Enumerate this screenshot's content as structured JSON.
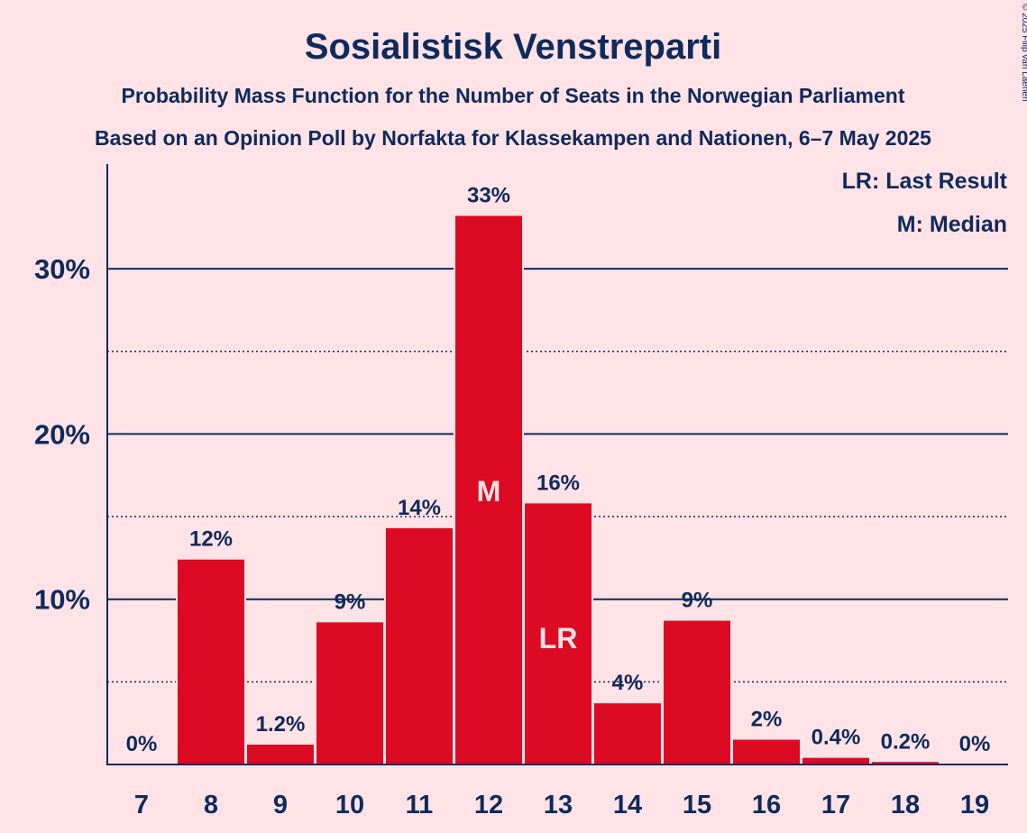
{
  "header": {
    "title": "Sosialistisk Venstreparti",
    "subtitle1": "Probability Mass Function for the Number of Seats in the Norwegian Parliament",
    "subtitle2": "Based on an Opinion Poll by Norfakta for Klassekampen and Nationen, 6–7 May 2025"
  },
  "legend": {
    "last_result": "LR: Last Result",
    "median": "M: Median"
  },
  "copyright": "© 2025 Filip van Laenen",
  "colors": {
    "background": "#FFE3E6",
    "bar": "#DC0A23",
    "text": "#0F2A5C"
  },
  "chart_data": {
    "type": "bar",
    "categories": [
      "7",
      "8",
      "9",
      "10",
      "11",
      "12",
      "13",
      "14",
      "15",
      "16",
      "17",
      "18",
      "19"
    ],
    "values": [
      0,
      12.4,
      1.2,
      8.6,
      14.3,
      33.2,
      15.8,
      3.7,
      8.7,
      1.5,
      0.4,
      0.15,
      0
    ],
    "labels": [
      "0%",
      "12%",
      "1.2%",
      "9%",
      "14%",
      "33%",
      "16%",
      "4%",
      "9%",
      "2%",
      "0.4%",
      "0.2%",
      "0%"
    ],
    "median_seat": "12",
    "median_marker": "M",
    "last_result_seat": "13",
    "last_result_marker": "LR",
    "yticks": [
      10,
      20,
      30
    ],
    "ytick_labels": [
      "10%",
      "20%",
      "30%"
    ],
    "minor_gridlines": [
      5,
      15,
      25
    ],
    "ylim": [
      0,
      36
    ],
    "xlabel": "",
    "ylabel": "",
    "grid": true,
    "legend_position": "top-right"
  }
}
